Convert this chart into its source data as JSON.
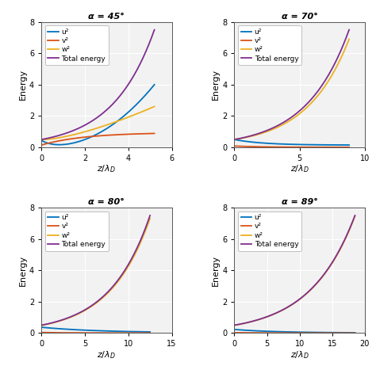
{
  "panels": [
    {
      "title": "α = 45°",
      "xlim": [
        0,
        6
      ],
      "xticks": [
        0,
        2,
        4,
        6
      ],
      "ylim": [
        0,
        8
      ],
      "yticks": [
        0,
        2,
        4,
        6,
        8
      ],
      "xmax_data": 5.2,
      "idx": 0
    },
    {
      "title": "α = 70°",
      "xlim": [
        0,
        10
      ],
      "xticks": [
        0,
        5,
        10
      ],
      "ylim": [
        0,
        8
      ],
      "yticks": [
        0,
        2,
        4,
        6,
        8
      ],
      "xmax_data": 8.8,
      "idx": 1
    },
    {
      "title": "α = 80°",
      "xlim": [
        0,
        15
      ],
      "xticks": [
        0,
        5,
        10,
        15
      ],
      "ylim": [
        0,
        8
      ],
      "yticks": [
        0,
        2,
        4,
        6,
        8
      ],
      "xmax_data": 12.5,
      "idx": 2
    },
    {
      "title": "α = 89°",
      "xlim": [
        0,
        20
      ],
      "xticks": [
        0,
        5,
        10,
        15,
        20
      ],
      "ylim": [
        0,
        8
      ],
      "yticks": [
        0,
        2,
        4,
        6,
        8
      ],
      "xmax_data": 18.5,
      "idx": 3
    }
  ],
  "colors": {
    "u2": "#0072BD",
    "v2": "#D95319",
    "w2": "#EDB120",
    "total": "#7E2F8E"
  },
  "line_width": 1.3,
  "bg_color": "#F2F2F2",
  "grid_color": "#FFFFFF",
  "legend_fontsize": 6.5,
  "tick_fontsize": 7,
  "label_fontsize": 8,
  "title_fontsize": 8
}
